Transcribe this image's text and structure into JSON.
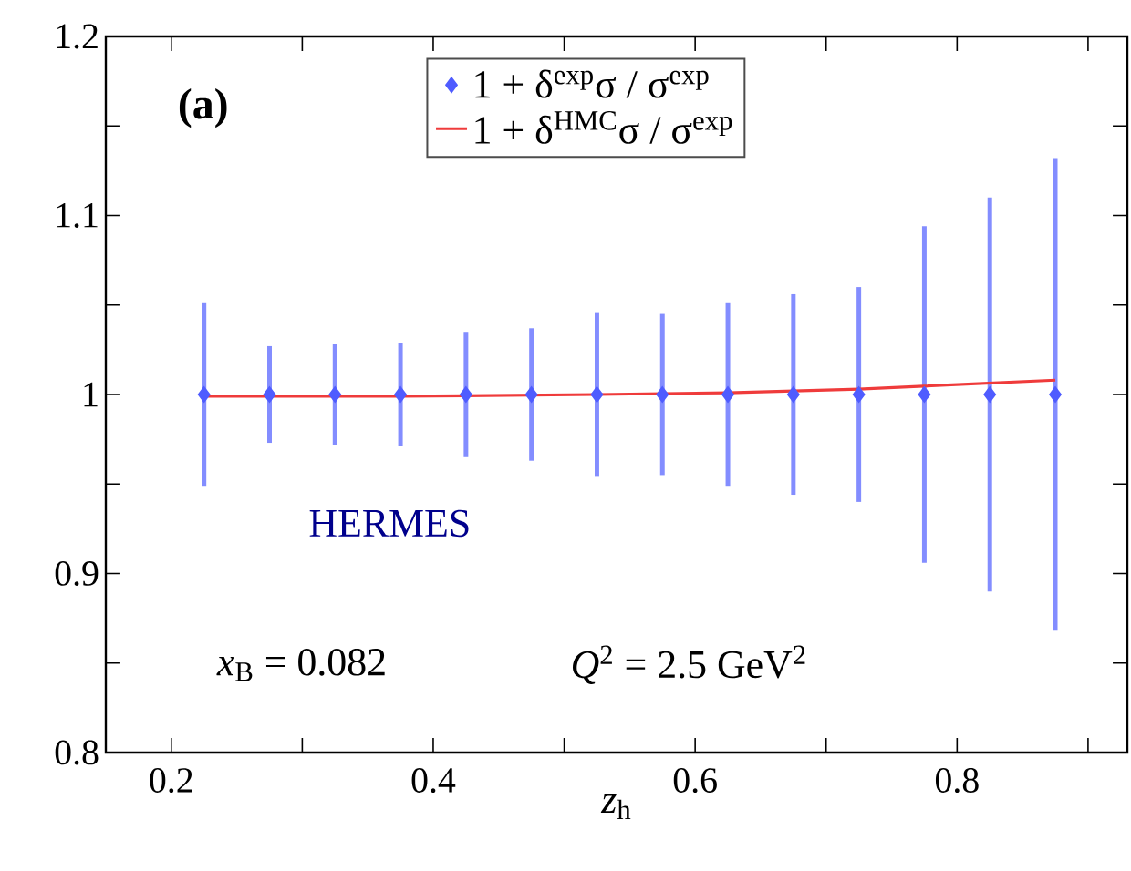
{
  "chart_data": {
    "type": "scatter",
    "xlabel": "*z*$_{h}$",
    "x": [
      0.225,
      0.275,
      0.325,
      0.375,
      0.425,
      0.475,
      0.525,
      0.575,
      0.625,
      0.675,
      0.725,
      0.775,
      0.825,
      0.875
    ],
    "series": [
      {
        "name": "1 + δ$^{exp}$σ / σ$^{exp}$",
        "color": "#4f5cff",
        "marker": "diamond",
        "values": [
          1,
          1,
          1,
          1,
          1,
          1,
          1,
          1,
          1,
          1,
          1,
          1,
          1,
          1
        ],
        "errors": [
          0.051,
          0.027,
          0.028,
          0.029,
          0.035,
          0.037,
          0.046,
          0.045,
          0.051,
          0.056,
          0.06,
          0.094,
          0.11,
          0.132
        ]
      },
      {
        "name": "1 + δ$^{HMC}$σ / σ$^{exp}$",
        "color": "#ef3b3b",
        "type": "line",
        "line_style": "solid",
        "x": [
          0.225,
          0.375,
          0.525,
          0.625,
          0.725,
          0.875
        ],
        "values": [
          0.999,
          0.999,
          1.0,
          1.001,
          1.003,
          1.008
        ]
      }
    ],
    "xlim": [
      0.15,
      0.93
    ],
    "ylim": [
      0.8,
      1.2
    ],
    "xticks": [
      0.2,
      {
        "value": 0.3,
        "label": null
      },
      0.4,
      {
        "value": 0.5,
        "label": null
      },
      0.6,
      {
        "value": 0.7,
        "label": null
      },
      0.8,
      {
        "value": 0.9,
        "label": null
      }
    ],
    "yticks": [
      0.8,
      {
        "value": 0.85,
        "label": null
      },
      0.9,
      {
        "value": 0.95,
        "label": null
      },
      1,
      {
        "value": 1.05,
        "label": null
      },
      1.1,
      {
        "value": 1.15,
        "label": null
      },
      1.2
    ],
    "legend": "top",
    "annotations": [
      "**(a)**",
      "HERMES",
      "*x*$_{B}$ = 0.082",
      "*Q*$^{2}$ = 2.5 GeV$^{2}$"
    ]
  }
}
